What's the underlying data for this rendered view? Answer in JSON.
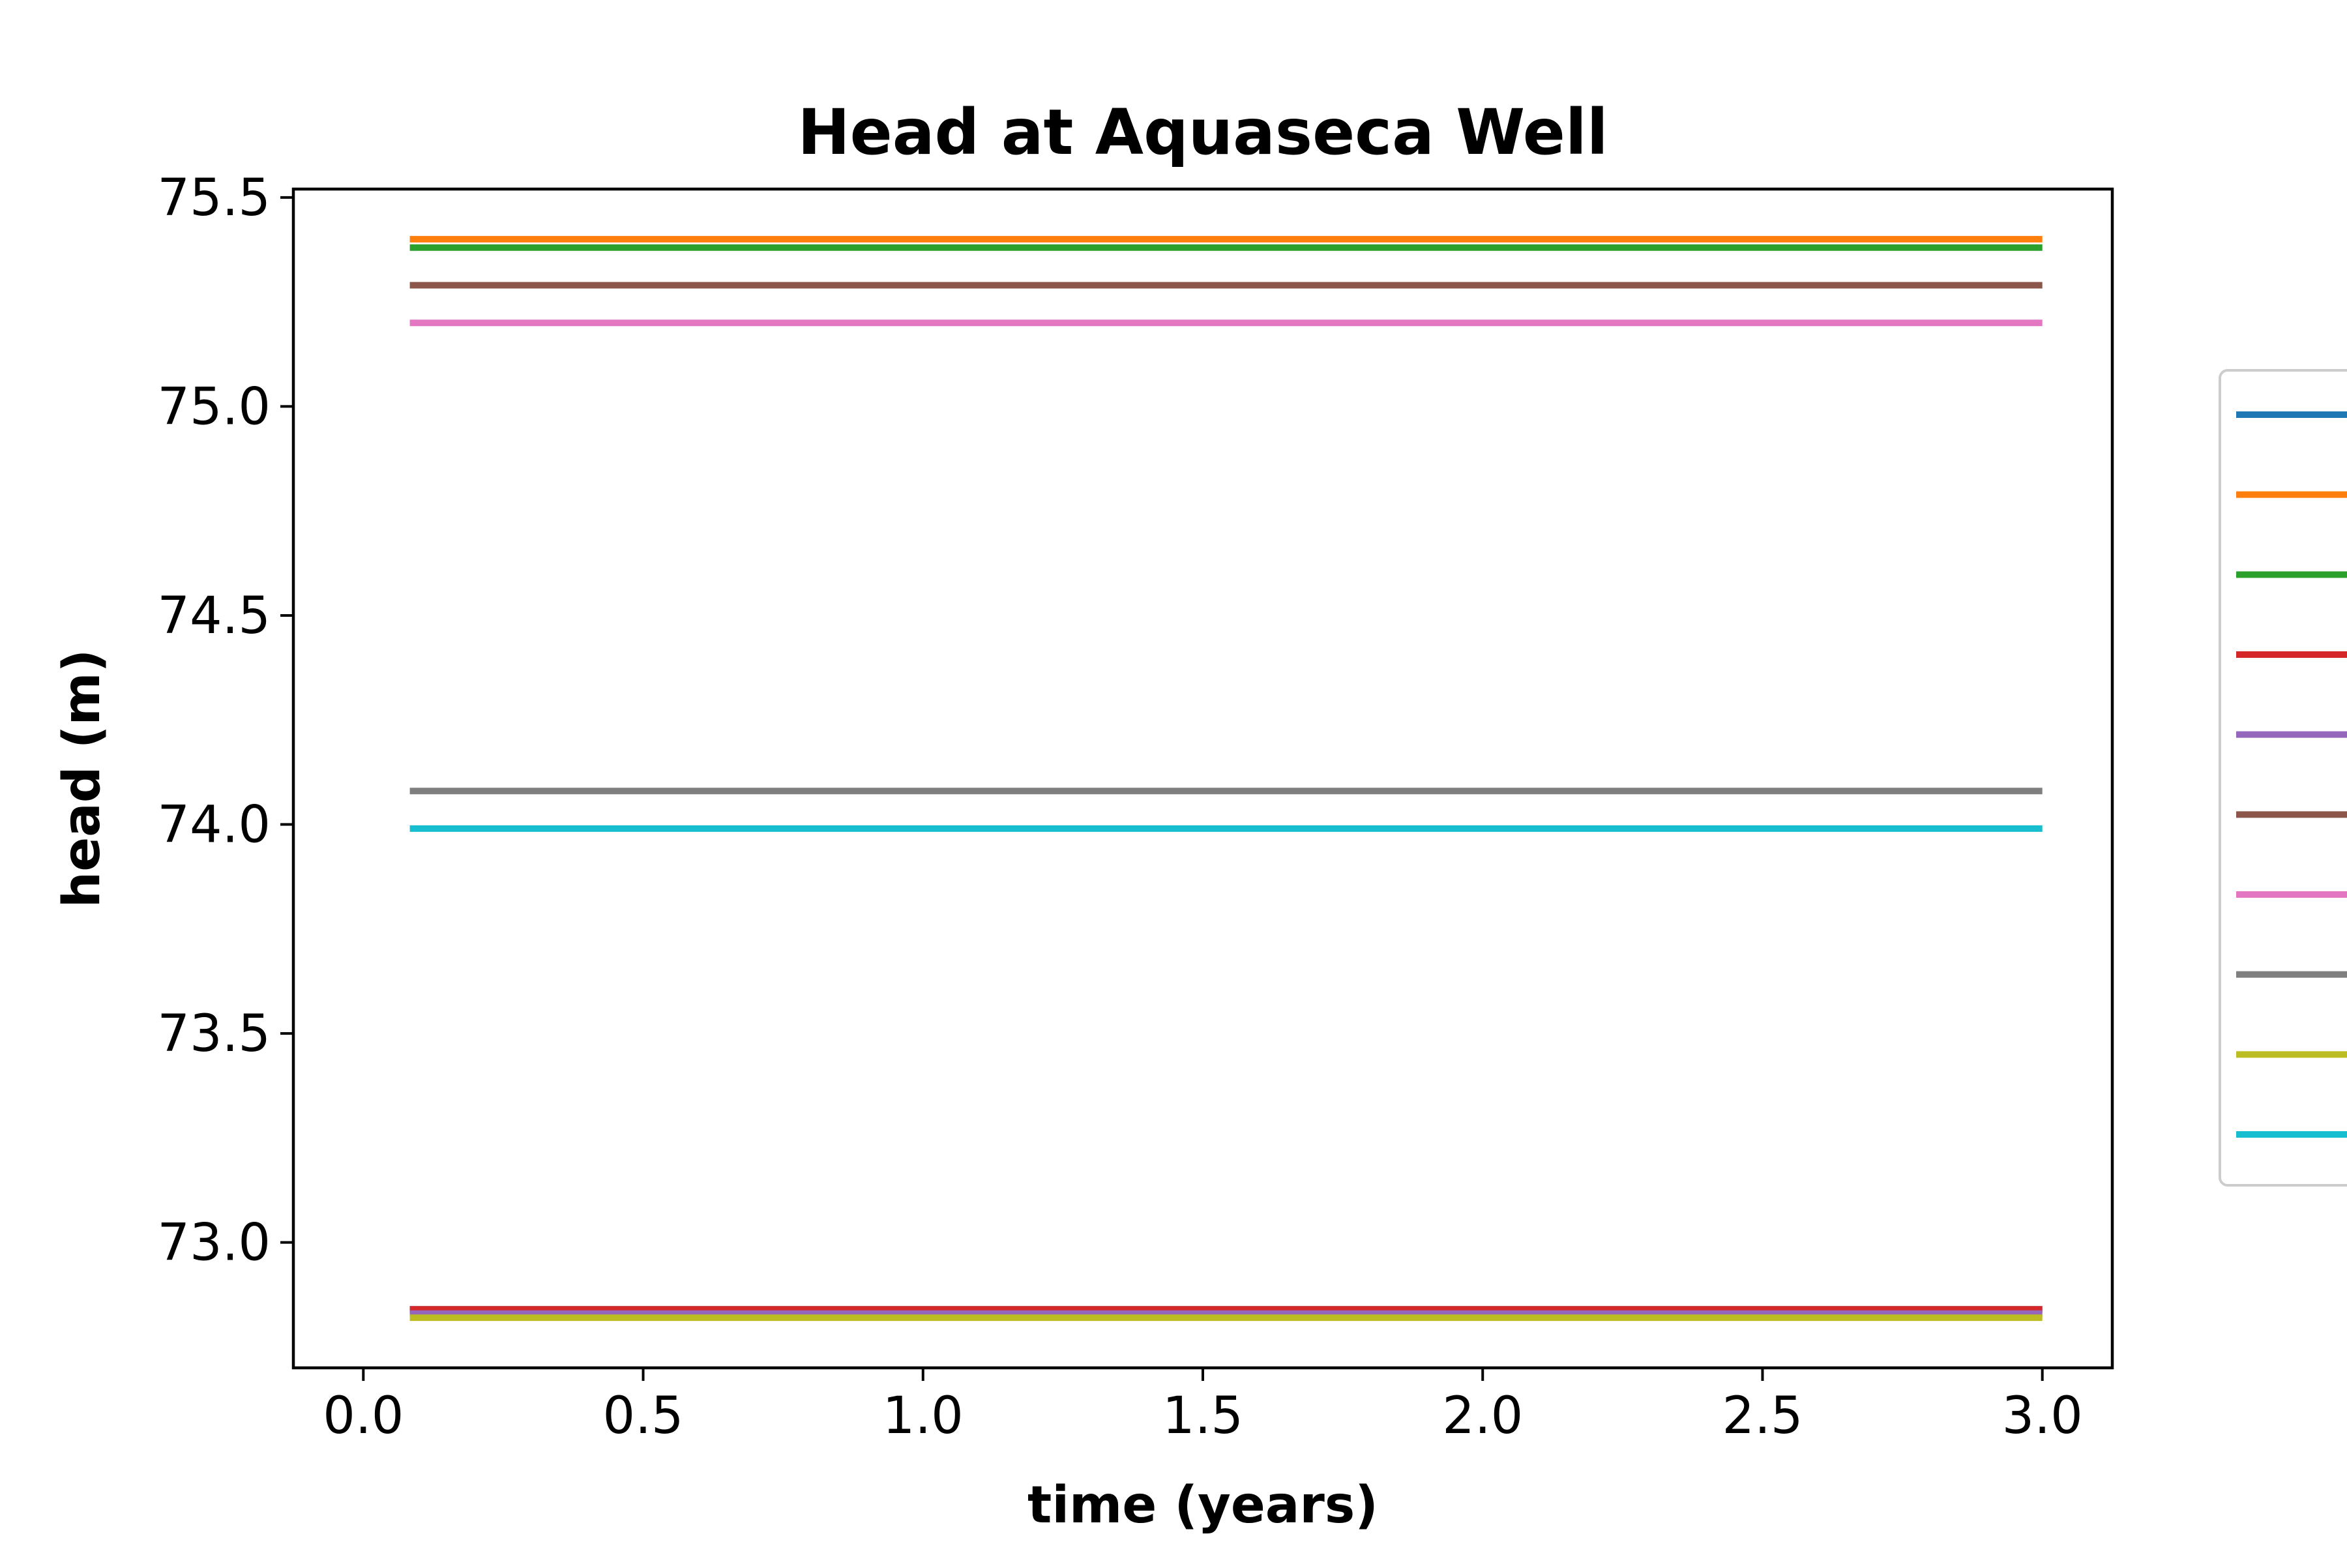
{
  "chart_data": {
    "type": "line",
    "title": "Head at Aquaseca Well",
    "xlabel": "time (years)",
    "ylabel": "head (m)",
    "xlim": [
      -0.125,
      3.125
    ],
    "ylim": [
      72.7,
      75.52
    ],
    "xticks": [
      0.0,
      0.5,
      1.0,
      1.5,
      2.0,
      2.5,
      3.0
    ],
    "xtick_labels": [
      "0.0",
      "0.5",
      "1.0",
      "1.5",
      "2.0",
      "2.5",
      "3.0"
    ],
    "yticks": [
      73.0,
      73.5,
      74.0,
      74.5,
      75.0,
      75.5
    ],
    "ytick_labels": [
      "73.0",
      "73.5",
      "74.0",
      "74.5",
      "75.0",
      "75.5"
    ],
    "grid": false,
    "legend_position": "right, outside plot (cropped)",
    "x": [
      0.083,
      3.0
    ],
    "series": [
      {
        "color": "#1f77b4",
        "values": [
          72.84,
          72.84
        ]
      },
      {
        "color": "#ff7f0e",
        "values": [
          75.4,
          75.4
        ]
      },
      {
        "color": "#2ca02c",
        "values": [
          75.38,
          75.38
        ]
      },
      {
        "color": "#d62728",
        "values": [
          72.84,
          72.84
        ]
      },
      {
        "color": "#9467bd",
        "values": [
          72.83,
          72.83
        ]
      },
      {
        "color": "#8c564b",
        "values": [
          75.29,
          75.29
        ]
      },
      {
        "color": "#e377c2",
        "values": [
          75.2,
          75.2
        ]
      },
      {
        "color": "#7f7f7f",
        "values": [
          74.08,
          74.08
        ]
      },
      {
        "color": "#bcbd22",
        "values": [
          72.82,
          72.82
        ]
      },
      {
        "color": "#17becf",
        "values": [
          73.99,
          73.99
        ]
      }
    ]
  }
}
